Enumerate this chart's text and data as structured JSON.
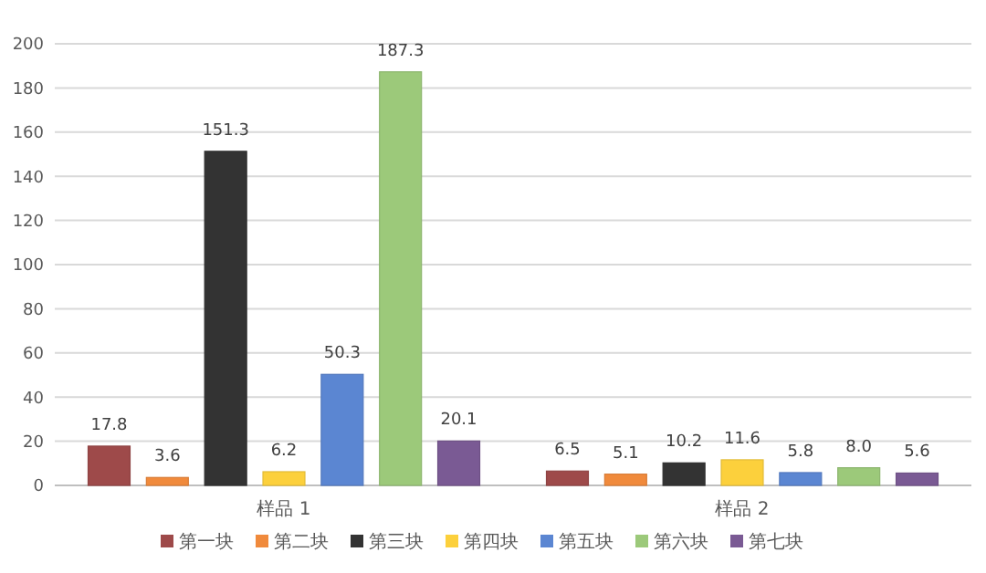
{
  "chart_data": {
    "type": "bar",
    "categories": [
      "样品 1",
      "样品 2"
    ],
    "series": [
      {
        "name": "第一块",
        "color": "#9e4a4a",
        "values": [
          17.8,
          6.5
        ]
      },
      {
        "name": "第二块",
        "color": "#f08a3c",
        "values": [
          3.6,
          5.1
        ]
      },
      {
        "name": "第三块",
        "color": "#333333",
        "values": [
          151.3,
          10.2
        ]
      },
      {
        "name": "第四块",
        "color": "#fcd03c",
        "values": [
          6.2,
          11.6
        ]
      },
      {
        "name": "第五块",
        "color": "#5b86d2",
        "values": [
          50.3,
          5.8
        ]
      },
      {
        "name": "第六块",
        "color": "#9cc97a",
        "values": [
          187.3,
          8.0
        ]
      },
      {
        "name": "第七块",
        "color": "#7a5a94",
        "values": [
          20.1,
          5.6
        ]
      }
    ],
    "ylim": [
      0,
      200
    ],
    "yticks": [
      0,
      20,
      40,
      60,
      80,
      100,
      120,
      140,
      160,
      180,
      200
    ],
    "value_labels": [
      [
        "17.8",
        "6.5"
      ],
      [
        "3.6",
        "5.1"
      ],
      [
        "151.3",
        "10.2"
      ],
      [
        "6.2",
        "11.6"
      ],
      [
        "50.3",
        "5.8"
      ],
      [
        "187.3",
        "8.0"
      ],
      [
        "20.1",
        "5.6"
      ]
    ],
    "grid": "y",
    "legend": "bottom"
  }
}
